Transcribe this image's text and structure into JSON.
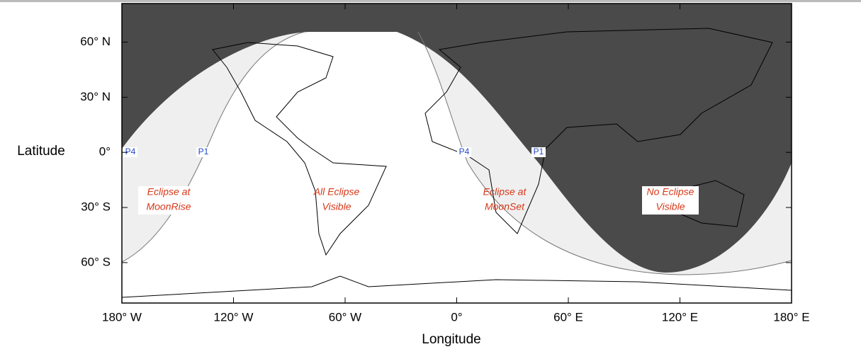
{
  "map": {
    "xlabel": "Longitude",
    "ylabel": "Latitude",
    "xlim": [
      -180,
      180
    ],
    "ylim": [
      -82,
      81
    ],
    "xticks": [
      {
        "value": -180,
        "label": "180° W"
      },
      {
        "value": -120,
        "label": "120° W"
      },
      {
        "value": -60,
        "label": "60° W"
      },
      {
        "value": 0,
        "label": "0°"
      },
      {
        "value": 60,
        "label": "60° E"
      },
      {
        "value": 120,
        "label": "120° E"
      },
      {
        "value": 180,
        "label": "180° E"
      }
    ],
    "yticks": [
      {
        "value": 60,
        "label": "60° N"
      },
      {
        "value": 30,
        "label": "30° N"
      },
      {
        "value": 0,
        "label": "0°"
      },
      {
        "value": -30,
        "label": "30° S"
      },
      {
        "value": -60,
        "label": "60° S"
      }
    ],
    "regions": [
      {
        "lines": [
          "Eclipse at",
          "MoonRise"
        ]
      },
      {
        "lines": [
          "All Eclipse",
          "Visible"
        ]
      },
      {
        "lines": [
          "Eclipse at",
          "MoonSet"
        ]
      },
      {
        "lines": [
          "No Eclipse",
          "Visible"
        ]
      }
    ],
    "contacts": [
      "P4",
      "P1",
      "P4",
      "P1"
    ]
  }
}
